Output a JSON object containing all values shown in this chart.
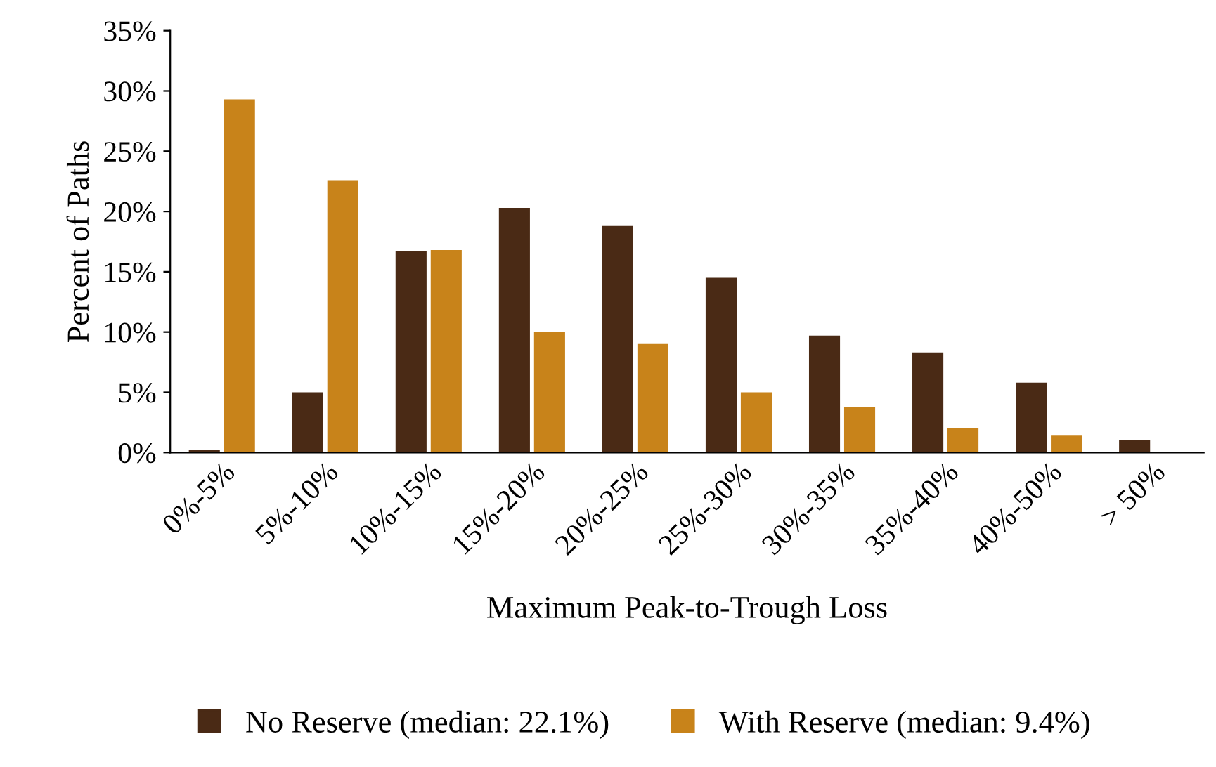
{
  "chart_data": {
    "type": "bar",
    "xlabel": "Maximum Peak-to-Trough Loss",
    "ylabel": "Percent of Paths",
    "categories": [
      "0%-5%",
      "5%-10%",
      "10%-15%",
      "15%-20%",
      "20%-25%",
      "25%-30%",
      "30%-35%",
      "35%-40%",
      "40%-50%",
      "> 50%"
    ],
    "series": [
      {
        "name": "No Reserve (median: 22.1%)",
        "color": "#4a2a15",
        "values": [
          0.2,
          5.0,
          16.7,
          20.3,
          18.8,
          14.5,
          9.7,
          8.3,
          5.8,
          1.0
        ]
      },
      {
        "name": "With Reserve (median: 9.4%)",
        "color": "#c8831a",
        "values": [
          29.3,
          22.6,
          16.8,
          10.0,
          9.0,
          5.0,
          3.8,
          2.0,
          1.4,
          null
        ]
      }
    ],
    "ylim": [
      0,
      35
    ],
    "yticks": [
      {
        "value": 0,
        "label": "0%"
      },
      {
        "value": 5,
        "label": "5%"
      },
      {
        "value": 10,
        "label": "10%"
      },
      {
        "value": 15,
        "label": "15%"
      },
      {
        "value": 20,
        "label": "20%"
      },
      {
        "value": 25,
        "label": "25%"
      },
      {
        "value": 30,
        "label": "30%"
      },
      {
        "value": 35,
        "label": "35%"
      }
    ],
    "grid": false,
    "legend": "bottom"
  }
}
